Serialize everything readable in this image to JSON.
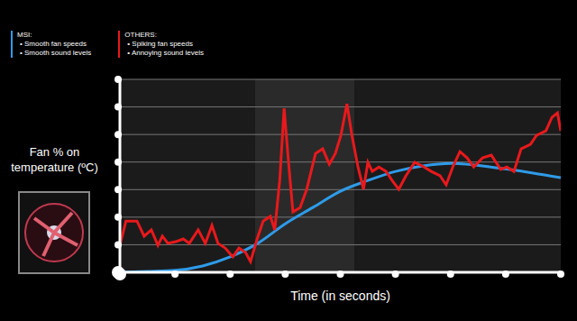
{
  "chart_data": {
    "type": "line",
    "x_label": "Time (in seconds)",
    "y_label": "Fan % on temperature (ºC)",
    "xlim": [
      0,
      8
    ],
    "xticks": [
      0,
      1,
      2,
      3,
      4,
      5,
      6,
      7,
      8
    ],
    "ylim": [
      0,
      7
    ],
    "yticks": [
      0,
      1,
      2,
      3,
      4,
      5,
      6,
      7
    ],
    "grid": true,
    "tick_labels": false,
    "legend": "top left",
    "series": [
      {
        "name": "MSI:",
        "color": "#2f9be8",
        "line_style": "smooth",
        "description": [
          "• Smooth fan speeds",
          "• Smooth sound levels"
        ],
        "x": [
          0,
          0.5,
          1,
          1.5,
          2,
          2.5,
          3,
          3.5,
          4,
          4.5,
          5,
          5.5,
          6,
          6.5,
          7,
          7.5,
          8
        ],
        "values": [
          0,
          0.03,
          0.07,
          0.23,
          0.56,
          1.05,
          1.76,
          2.35,
          2.94,
          3.33,
          3.66,
          3.86,
          3.95,
          3.88,
          3.75,
          3.6,
          3.43
        ]
      },
      {
        "name": "OTHERS:",
        "color": "#e8191c",
        "line_style": "solid",
        "description": [
          "• Spiking fan speeds",
          "• Annoying sound levels"
        ],
        "x": [
          0,
          0.11,
          0.31,
          0.44,
          0.57,
          0.69,
          0.77,
          0.87,
          1.01,
          1.15,
          1.26,
          1.42,
          1.55,
          1.67,
          1.78,
          1.91,
          2.05,
          2.16,
          2.28,
          2.37,
          2.49,
          2.6,
          2.73,
          2.81,
          2.9,
          2.98,
          3.06,
          3.14,
          3.27,
          3.39,
          3.55,
          3.68,
          3.8,
          3.91,
          4.01,
          4.12,
          4.21,
          4.32,
          4.42,
          4.5,
          4.58,
          4.7,
          4.83,
          4.94,
          5.06,
          5.19,
          5.35,
          5.52,
          5.65,
          5.81,
          5.92,
          6.04,
          6.17,
          6.3,
          6.42,
          6.58,
          6.74,
          6.91,
          7.02,
          7.15,
          7.28,
          7.45,
          7.56,
          7.73,
          7.84,
          7.94,
          8.0
        ],
        "values": [
          0.98,
          1.86,
          1.86,
          1.31,
          1.54,
          0.98,
          1.31,
          1.05,
          1.11,
          1.21,
          1.05,
          1.54,
          1.05,
          1.7,
          1.05,
          0.88,
          0.56,
          0.88,
          0.72,
          0.39,
          1.21,
          1.86,
          2.03,
          1.54,
          3.33,
          5.95,
          3.99,
          2.19,
          2.35,
          3.01,
          4.31,
          4.48,
          3.92,
          4.31,
          4.97,
          6.11,
          4.97,
          3.82,
          3.01,
          3.99,
          3.66,
          3.82,
          3.66,
          3.33,
          3.01,
          3.5,
          3.99,
          3.82,
          3.66,
          3.5,
          3.17,
          3.82,
          4.38,
          4.15,
          3.82,
          4.15,
          4.25,
          3.73,
          3.82,
          3.66,
          4.48,
          4.64,
          4.97,
          5.13,
          5.62,
          5.78,
          5.13
        ]
      }
    ]
  }
}
